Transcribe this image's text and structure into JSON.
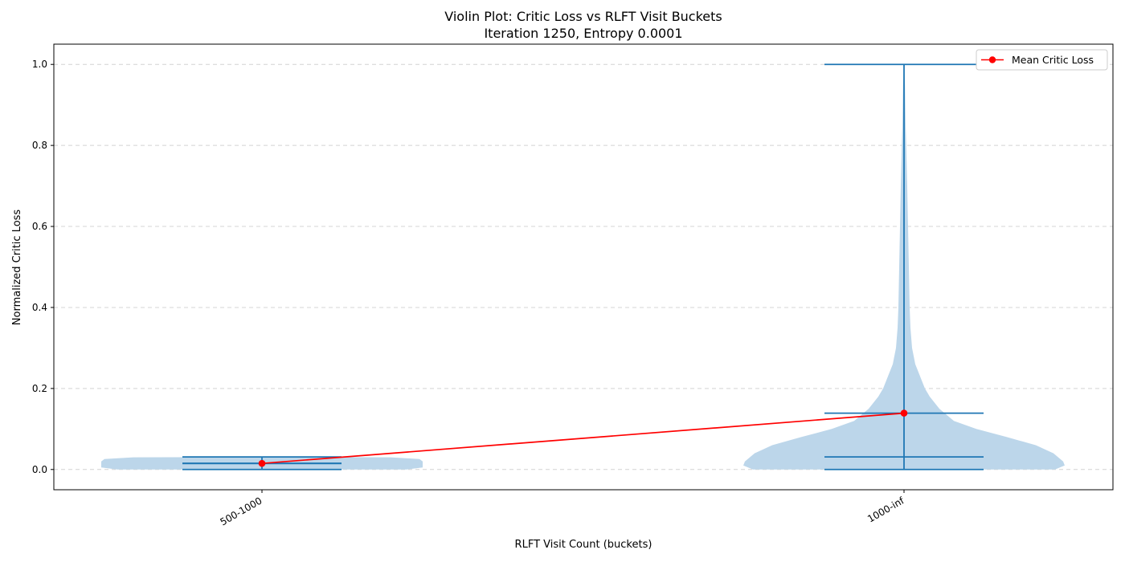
{
  "chart_data": {
    "type": "violin",
    "title": "Violin Plot: Critic Loss vs RLFT Visit Buckets",
    "subtitle": "Iteration 1250, Entropy 0.0001",
    "xlabel": "RLFT Visit Count (buckets)",
    "ylabel": "Normalized Critic Loss",
    "categories": [
      "500-1000",
      "1000-inf"
    ],
    "ylim": [
      -0.05,
      1.05
    ],
    "yticks": [
      0.0,
      0.2,
      0.4,
      0.6,
      0.8,
      1.0
    ],
    "ytick_labels": [
      "0.0",
      "0.2",
      "0.4",
      "0.6",
      "0.8",
      "1.0"
    ],
    "grid": "y-dashed",
    "legend_position": "top-right",
    "violins": [
      {
        "category": "500-1000",
        "min": 0.0,
        "max": 0.031,
        "mean": 0.015,
        "median": 0.015,
        "density": [
          [
            0.0,
            0.9
          ],
          [
            0.005,
            1.0
          ],
          [
            0.01,
            1.0
          ],
          [
            0.02,
            1.0
          ],
          [
            0.026,
            0.98
          ],
          [
            0.03,
            0.8
          ],
          [
            0.031,
            0.0
          ]
        ]
      },
      {
        "category": "1000-inf",
        "min": 0.0,
        "max": 1.0,
        "mean": 0.139,
        "median": 0.031,
        "density": [
          [
            0.0,
            0.94
          ],
          [
            0.01,
            1.0
          ],
          [
            0.02,
            0.99
          ],
          [
            0.04,
            0.93
          ],
          [
            0.06,
            0.82
          ],
          [
            0.08,
            0.64
          ],
          [
            0.1,
            0.45
          ],
          [
            0.12,
            0.31
          ],
          [
            0.15,
            0.22
          ],
          [
            0.18,
            0.16
          ],
          [
            0.2,
            0.13
          ],
          [
            0.23,
            0.1
          ],
          [
            0.26,
            0.07
          ],
          [
            0.3,
            0.05
          ],
          [
            0.35,
            0.04
          ],
          [
            0.4,
            0.035
          ],
          [
            0.5,
            0.03
          ],
          [
            0.6,
            0.025
          ],
          [
            0.7,
            0.02
          ],
          [
            0.8,
            0.014
          ],
          [
            0.85,
            0.01
          ],
          [
            0.9,
            0.008
          ],
          [
            0.95,
            0.006
          ],
          [
            1.0,
            0.0
          ]
        ]
      }
    ],
    "series": [
      {
        "name": "Mean Critic Loss",
        "color": "#ff0000",
        "values": [
          0.015,
          0.139
        ]
      }
    ],
    "colors": {
      "violin_body": "#bcd6ea",
      "violin_lines": "#1f77b4",
      "mean_line": "#ff0000"
    }
  }
}
